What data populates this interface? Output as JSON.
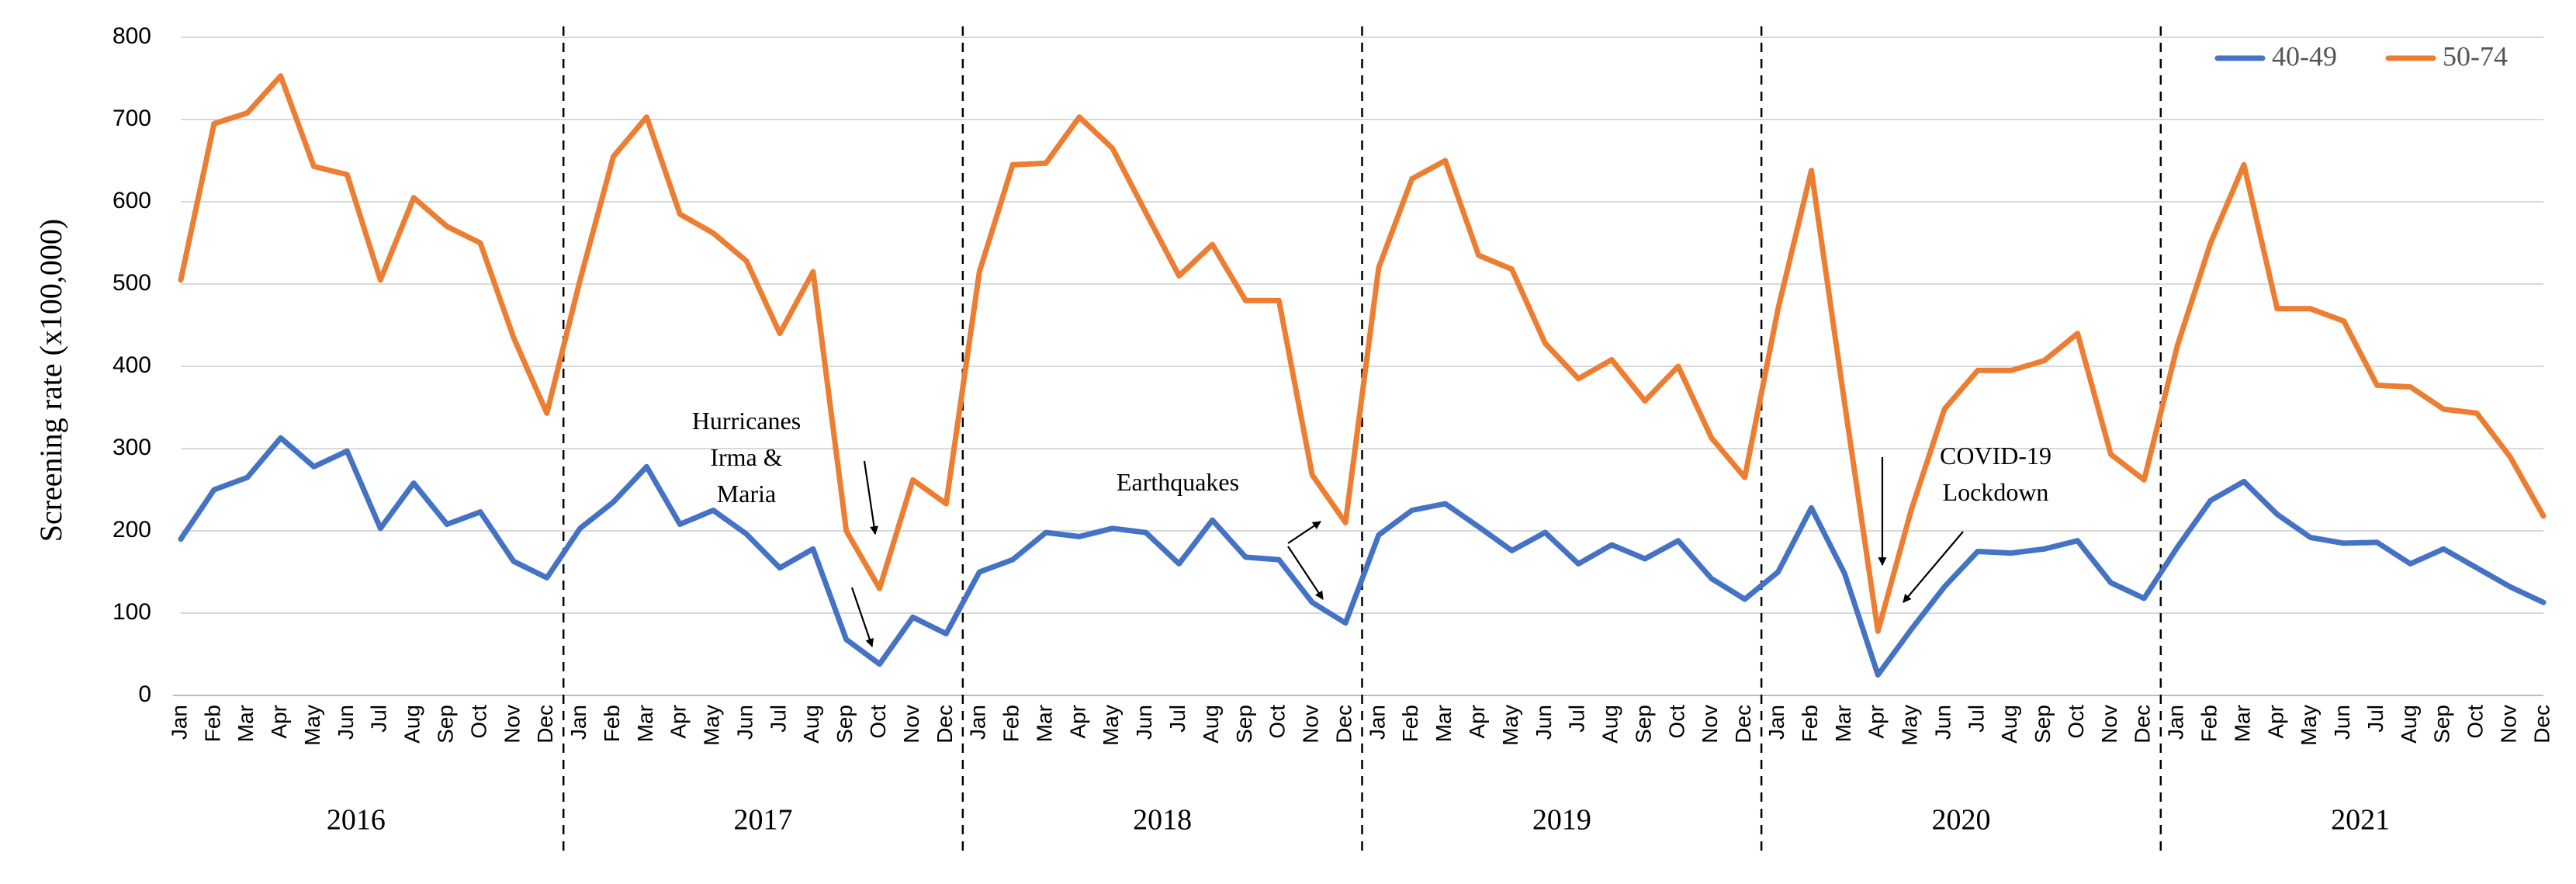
{
  "chart_data": {
    "type": "line",
    "title": "",
    "xlabel": "",
    "ylabel": "Screening rate (x100,000)",
    "ylim": [
      0,
      800
    ],
    "yticks": [
      0,
      100,
      200,
      300,
      400,
      500,
      600,
      700,
      800
    ],
    "years": [
      "2016",
      "2017",
      "2018",
      "2019",
      "2020",
      "2021"
    ],
    "months": [
      "Jan",
      "Feb",
      "Mar",
      "Apr",
      "May",
      "Jun",
      "Jul",
      "Aug",
      "Sep",
      "Oct",
      "Nov",
      "Dec"
    ],
    "legend_position": "top-right",
    "series": [
      {
        "name": "40-49",
        "color": "#4472c4",
        "values": [
          190,
          250,
          265,
          313,
          278,
          297,
          203,
          258,
          208,
          223,
          163,
          143,
          203,
          235,
          278,
          208,
          225,
          196,
          155,
          178,
          68,
          38,
          95,
          75,
          150,
          165,
          198,
          193,
          203,
          198,
          160,
          213,
          168,
          165,
          113,
          88,
          195,
          225,
          233,
          205,
          176,
          198,
          160,
          183,
          166,
          188,
          142,
          117,
          150,
          228,
          148,
          25,
          80,
          132,
          175,
          173,
          178,
          188,
          137,
          118,
          180,
          237,
          260,
          220,
          192,
          185,
          186,
          160,
          178,
          155,
          132,
          113
        ]
      },
      {
        "name": "50-74",
        "color": "#ed7d31",
        "values": [
          505,
          695,
          708,
          753,
          643,
          633,
          505,
          605,
          570,
          550,
          435,
          343,
          505,
          655,
          703,
          585,
          562,
          528,
          440,
          515,
          200,
          130,
          262,
          233,
          515,
          645,
          647,
          703,
          665,
          587,
          510,
          548,
          480,
          480,
          268,
          210,
          520,
          628,
          650,
          535,
          518,
          428,
          385,
          408,
          358,
          400,
          313,
          265,
          470,
          638,
          355,
          78,
          225,
          348,
          395,
          395,
          407,
          440,
          293,
          262,
          425,
          550,
          645,
          470,
          470,
          455,
          377,
          375,
          348,
          343,
          290,
          218
        ]
      }
    ],
    "annotations": [
      {
        "lines": [
          "Hurricanes",
          "Irma &",
          "Maria"
        ]
      },
      {
        "lines": [
          "Earthquakes"
        ]
      },
      {
        "lines": [
          "COVID-19",
          "Lockdown"
        ]
      }
    ]
  }
}
